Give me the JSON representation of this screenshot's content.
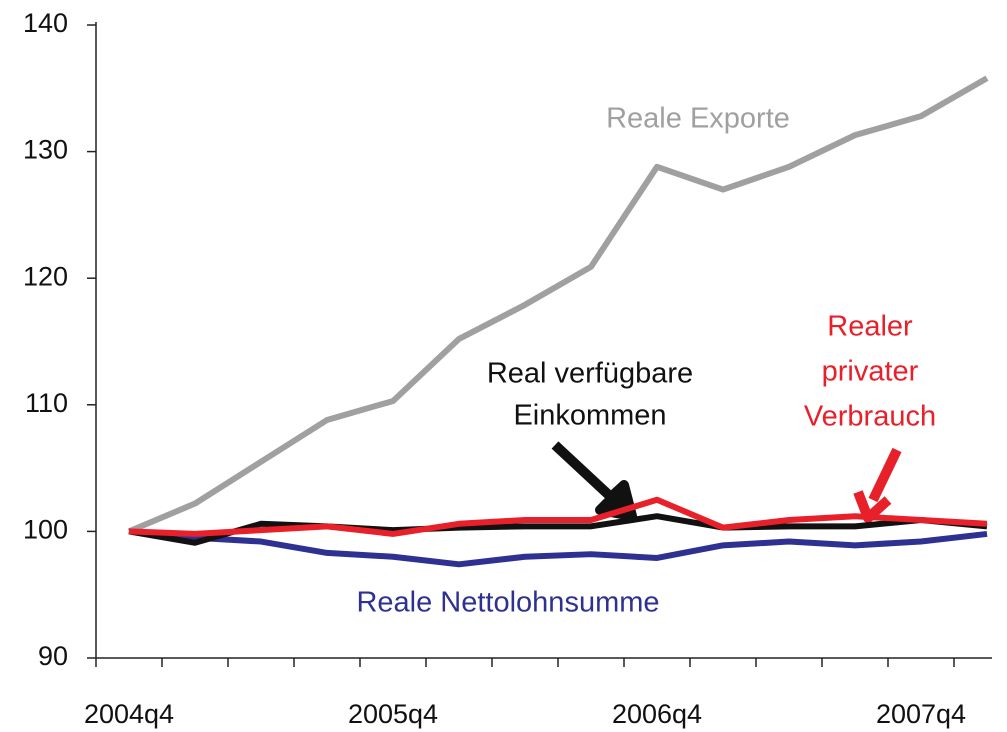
{
  "chart_data": {
    "type": "line",
    "categories": [
      "2004q4",
      null,
      null,
      null,
      "2005q4",
      null,
      null,
      null,
      "2006q4",
      null,
      null,
      null,
      "2007q4",
      null
    ],
    "series": [
      {
        "name": [
          "Reale Exporte"
        ],
        "color": "#a0a0a0",
        "values": [
          100,
          102.2,
          105.5,
          108.8,
          110.3,
          115.2,
          117.9,
          120.9,
          128.8,
          127,
          128.8,
          131.3,
          132.8,
          135.8
        ]
      },
      {
        "name": [
          "Real verfügbare",
          "Einkommen"
        ],
        "color": "#111111",
        "values": [
          100,
          99.1,
          100.6,
          100.4,
          100.1,
          100.3,
          100.4,
          100.4,
          101.2,
          100.3,
          100.4,
          100.4,
          100.9,
          100.4
        ]
      },
      {
        "name": [
          "Realer",
          "privater",
          "Verbrauch"
        ],
        "color": "#e8202a",
        "values": [
          100,
          99.8,
          100.1,
          100.4,
          99.8,
          100.6,
          100.9,
          100.9,
          102.5,
          100.3,
          100.9,
          101.2,
          100.9,
          100.6
        ]
      },
      {
        "name": [
          "Reale Nettolohnsumme"
        ],
        "color": "#2e3192",
        "values": [
          100,
          99.5,
          99.2,
          98.3,
          98.0,
          97.4,
          98.0,
          98.2,
          97.9,
          98.9,
          99.2,
          98.9,
          99.2,
          99.8
        ]
      }
    ],
    "ylim": [
      90,
      140
    ],
    "yticks": [
      90,
      100,
      110,
      120,
      130,
      140
    ],
    "grid": false
  }
}
